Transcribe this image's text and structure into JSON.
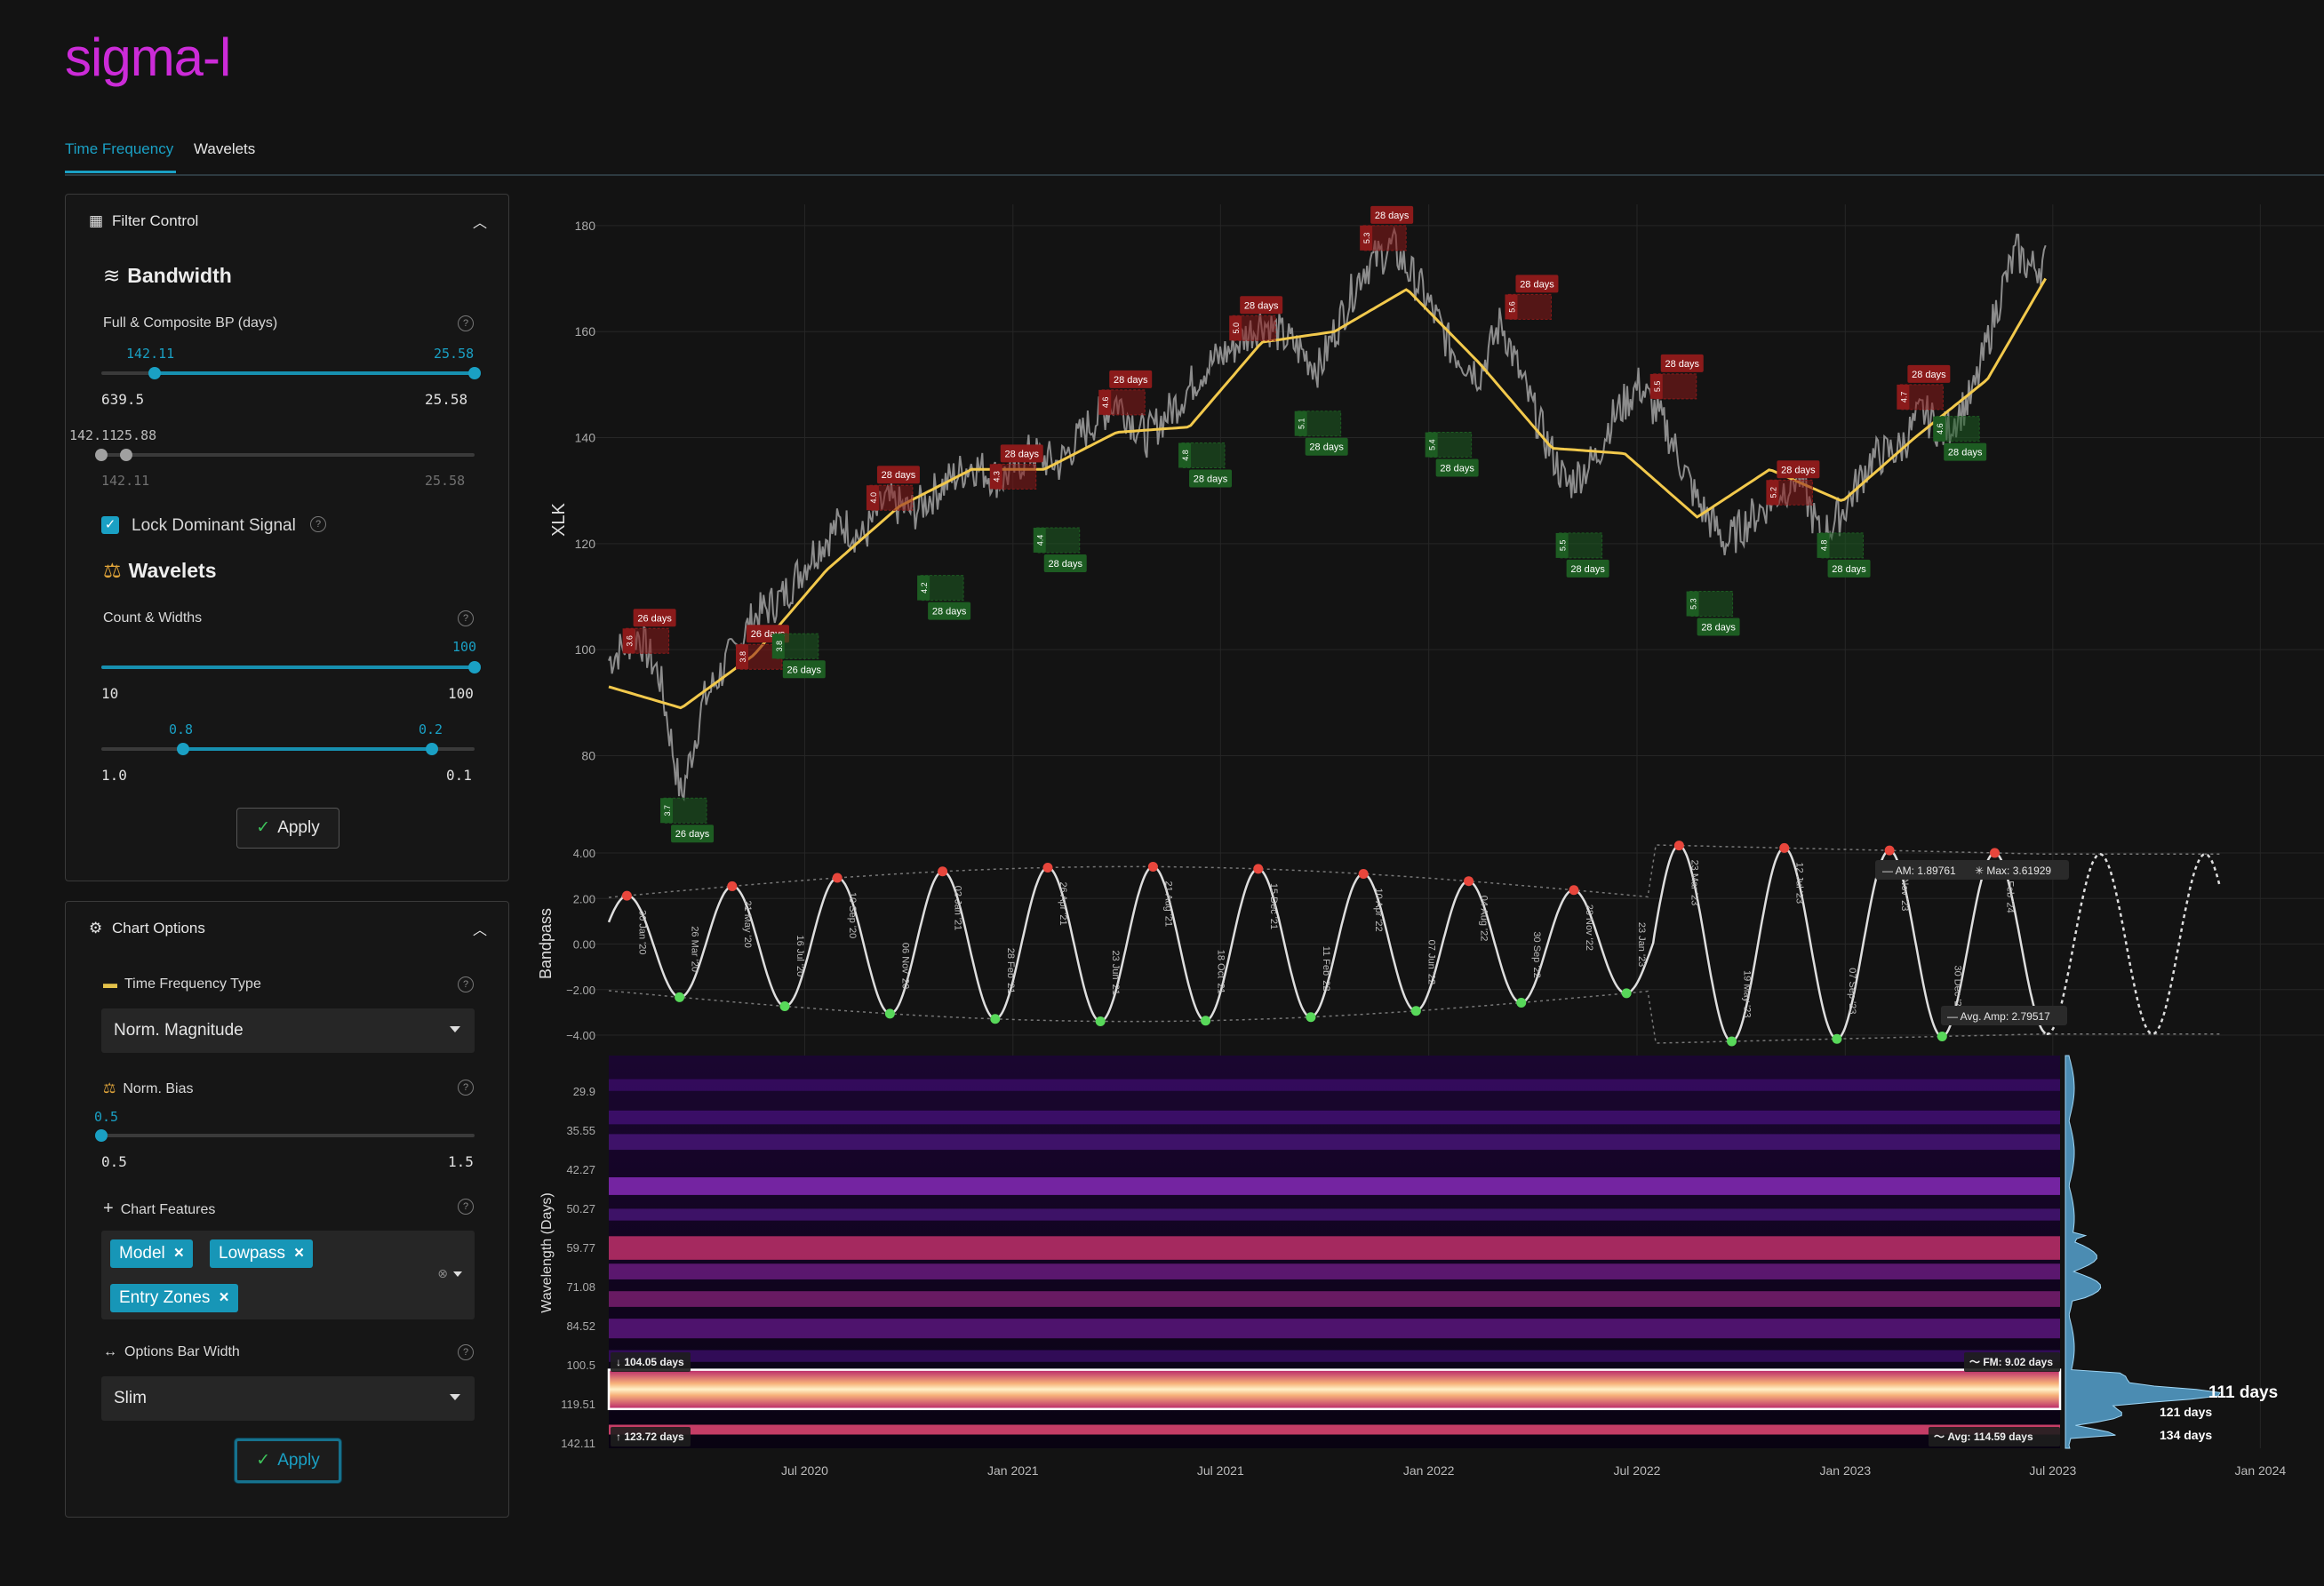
{
  "app": {
    "logo": "sigma-l"
  },
  "tabs": [
    {
      "label": "Time Frequency",
      "active": true
    },
    {
      "label": "Wavelets",
      "active": false
    }
  ],
  "filter_control": {
    "title": "Filter Control",
    "bandwidth": {
      "title": "Bandwidth",
      "label": "Full & Composite BP (days)",
      "range1": {
        "low_value": "142.11",
        "high_value": "25.58",
        "min": "639.5",
        "max": "25.58"
      },
      "range2": {
        "low_value": "142.11",
        "high_value": "25.88",
        "min": "142.11",
        "max": "25.58"
      }
    },
    "lock_dominant": {
      "label": "Lock Dominant Signal",
      "checked": true
    },
    "wavelets": {
      "title": "Wavelets",
      "label": "Count & Widths",
      "count": {
        "value": "100",
        "min": "10",
        "max": "100"
      },
      "widths": {
        "low_value": "0.8",
        "high_value": "0.2",
        "min": "1.0",
        "max": "0.1"
      }
    },
    "apply_label": "Apply"
  },
  "chart_options": {
    "title": "Chart Options",
    "tf_type": {
      "label": "Time Frequency Type",
      "value": "Norm. Magnitude"
    },
    "norm_bias": {
      "label": "Norm. Bias",
      "value": "0.5",
      "min": "0.5",
      "max": "1.5"
    },
    "features": {
      "label": "Chart Features",
      "tags": [
        "Model",
        "Lowpass",
        "Entry Zones"
      ]
    },
    "bar_width": {
      "label": "Options Bar Width",
      "value": "Slim"
    },
    "apply_label": "Apply"
  },
  "colors": {
    "accent": "#1aa0c4",
    "model_line": "#f2c94c",
    "peak": "#e8463c",
    "trough": "#58d85a",
    "logo": "#cc2bd8",
    "zone_red": "#8b1a1a",
    "zone_green": "#1d5c22"
  },
  "chart_data": [
    {
      "type": "line",
      "ylabel": "XLK",
      "yticks": [
        80,
        100,
        120,
        140,
        160,
        180
      ],
      "x_ticks": [
        "Jul 2020",
        "Jan 2021",
        "Jul 2021",
        "Jan 2022",
        "Jul 2022",
        "Jan 2023",
        "Jul 2023",
        "Jan 2024"
      ],
      "series": [
        {
          "values_desc": "price",
          "points": [
            [
              0,
              98
            ],
            [
              0.02,
              103
            ],
            [
              0.035,
              95
            ],
            [
              0.05,
              72
            ],
            [
              0.065,
              90
            ],
            [
              0.08,
              97
            ],
            [
              0.1,
              106
            ],
            [
              0.12,
              110
            ],
            [
              0.14,
              118
            ],
            [
              0.16,
              124
            ],
            [
              0.175,
              121
            ],
            [
              0.19,
              128
            ],
            [
              0.21,
              126
            ],
            [
              0.23,
              131
            ],
            [
              0.25,
              135
            ],
            [
              0.27,
              132
            ],
            [
              0.29,
              137
            ],
            [
              0.31,
              135
            ],
            [
              0.33,
              142
            ],
            [
              0.35,
              147
            ],
            [
              0.37,
              140
            ],
            [
              0.39,
              146
            ],
            [
              0.41,
              153
            ],
            [
              0.43,
              157
            ],
            [
              0.45,
              162
            ],
            [
              0.47,
              158
            ],
            [
              0.49,
              153
            ],
            [
              0.5,
              160
            ],
            [
              0.52,
              172
            ],
            [
              0.54,
              176
            ],
            [
              0.56,
              168
            ],
            [
              0.58,
              157
            ],
            [
              0.6,
              152
            ],
            [
              0.615,
              162
            ],
            [
              0.63,
              150
            ],
            [
              0.645,
              140
            ],
            [
              0.66,
              131
            ],
            [
              0.68,
              136
            ],
            [
              0.69,
              143
            ],
            [
              0.71,
              150
            ],
            [
              0.73,
              141
            ],
            [
              0.75,
              128
            ],
            [
              0.77,
              120
            ],
            [
              0.78,
              123
            ],
            [
              0.8,
              128
            ],
            [
              0.82,
              133
            ],
            [
              0.835,
              121
            ],
            [
              0.85,
              126
            ],
            [
              0.87,
              136
            ],
            [
              0.89,
              138
            ],
            [
              0.905,
              145
            ],
            [
              0.92,
              141
            ],
            [
              0.94,
              148
            ],
            [
              0.96,
              168
            ],
            [
              0.97,
              175
            ],
            [
              0.98,
              172
            ],
            [
              0.99,
              173
            ]
          ]
        },
        {
          "values_desc": "model",
          "points": [
            [
              0,
              93
            ],
            [
              0.05,
              89
            ],
            [
              0.1,
              99
            ],
            [
              0.15,
              115
            ],
            [
              0.2,
              127
            ],
            [
              0.25,
              134
            ],
            [
              0.3,
              134
            ],
            [
              0.35,
              141
            ],
            [
              0.4,
              142
            ],
            [
              0.45,
              158
            ],
            [
              0.5,
              160
            ],
            [
              0.55,
              168
            ],
            [
              0.6,
              154
            ],
            [
              0.65,
              138
            ],
            [
              0.7,
              137
            ],
            [
              0.75,
              125
            ],
            [
              0.8,
              134
            ],
            [
              0.85,
              128
            ],
            [
              0.9,
              140
            ],
            [
              0.95,
              151
            ],
            [
              0.99,
              170
            ]
          ]
        }
      ],
      "zone_label": "28 days",
      "red_zones": [
        {
          "x": 0.012,
          "y": 104,
          "label": "26 days",
          "n": "3.6"
        },
        {
          "x": 0.09,
          "y": 101,
          "label": "26 days",
          "n": "3.8"
        },
        {
          "x": 0.18,
          "y": 131,
          "label": "28 days",
          "n": "4.0"
        },
        {
          "x": 0.265,
          "y": 135,
          "label": "28 days",
          "n": "4.3"
        },
        {
          "x": 0.34,
          "y": 149,
          "label": "28 days",
          "n": "4.6"
        },
        {
          "x": 0.43,
          "y": 163,
          "label": "28 days",
          "n": "5.0"
        },
        {
          "x": 0.52,
          "y": 180,
          "label": "28 days",
          "n": "5.3"
        },
        {
          "x": 0.62,
          "y": 167,
          "label": "28 days",
          "n": "5.6"
        },
        {
          "x": 0.72,
          "y": 152,
          "label": "28 days",
          "n": "5.5"
        },
        {
          "x": 0.8,
          "y": 132,
          "label": "28 days",
          "n": "5.2"
        },
        {
          "x": 0.89,
          "y": 150,
          "label": "28 days",
          "n": "4.7"
        }
      ],
      "green_zones": [
        {
          "x": 0.038,
          "y": 72,
          "label": "26 days",
          "n": "3.7"
        },
        {
          "x": 0.115,
          "y": 103,
          "label": "26 days",
          "n": "3.8"
        },
        {
          "x": 0.215,
          "y": 114,
          "label": "28 days",
          "n": "4.2"
        },
        {
          "x": 0.295,
          "y": 123,
          "label": "28 days",
          "n": "4.4"
        },
        {
          "x": 0.395,
          "y": 139,
          "label": "28 days",
          "n": "4.8"
        },
        {
          "x": 0.475,
          "y": 145,
          "label": "28 days",
          "n": "5.1"
        },
        {
          "x": 0.565,
          "y": 141,
          "label": "28 days",
          "n": "5.4"
        },
        {
          "x": 0.655,
          "y": 122,
          "label": "28 days",
          "n": "5.5"
        },
        {
          "x": 0.745,
          "y": 111,
          "label": "28 days",
          "n": "5.3"
        },
        {
          "x": 0.835,
          "y": 122,
          "label": "28 days",
          "n": "4.8"
        },
        {
          "x": 0.915,
          "y": 144,
          "label": "28 days",
          "n": "4.6"
        }
      ]
    },
    {
      "type": "line",
      "ylabel": "Bandpass",
      "yticks": [
        "4.00",
        "2.00",
        "0.00",
        "−2.00",
        "−4.00"
      ],
      "ylim": [
        -4,
        4
      ],
      "am_label": "AM: 1.89761",
      "max_label": "Max: 3.61929",
      "avg_amp_label": "Avg. Amp: 2.79517",
      "cycle_labels": [
        "30 Jan '20",
        "26 Mar '20",
        "21 May '20",
        "16 Jul '20",
        "10 Sep '20",
        "06 Nov '20",
        "02 Jan '21",
        "28 Feb '21",
        "26 Apr '21",
        "23 Jun '21",
        "21 Aug '21",
        "18 Oct '21",
        "15 Dec '21",
        "11 Feb '22",
        "10 Apr '22",
        "07 Jun '22",
        "04 Aug '22",
        "30 Sep '22",
        "28 Nov '22",
        "23 Jan '23",
        "23 Mar '23",
        "19 May '23",
        "12 Jul '23",
        "07 Sep '23",
        "03 Nov '23",
        "30 Dec '23",
        "25 Feb '24"
      ]
    },
    {
      "type": "heatmap",
      "ylabel": "Wavelength (Days)",
      "yticks": [
        "29.9",
        "35.55",
        "42.27",
        "50.27",
        "59.77",
        "71.08",
        "84.52",
        "100.5",
        "119.51",
        "142.11"
      ],
      "band_upper": "104.05 days",
      "band_lower": "123.72 days",
      "fm_label": "FM: 9.02 days",
      "avg_label": "Avg: 114.59 days",
      "peak_labels": [
        "111 days",
        "121 days",
        "134 days"
      ]
    }
  ]
}
